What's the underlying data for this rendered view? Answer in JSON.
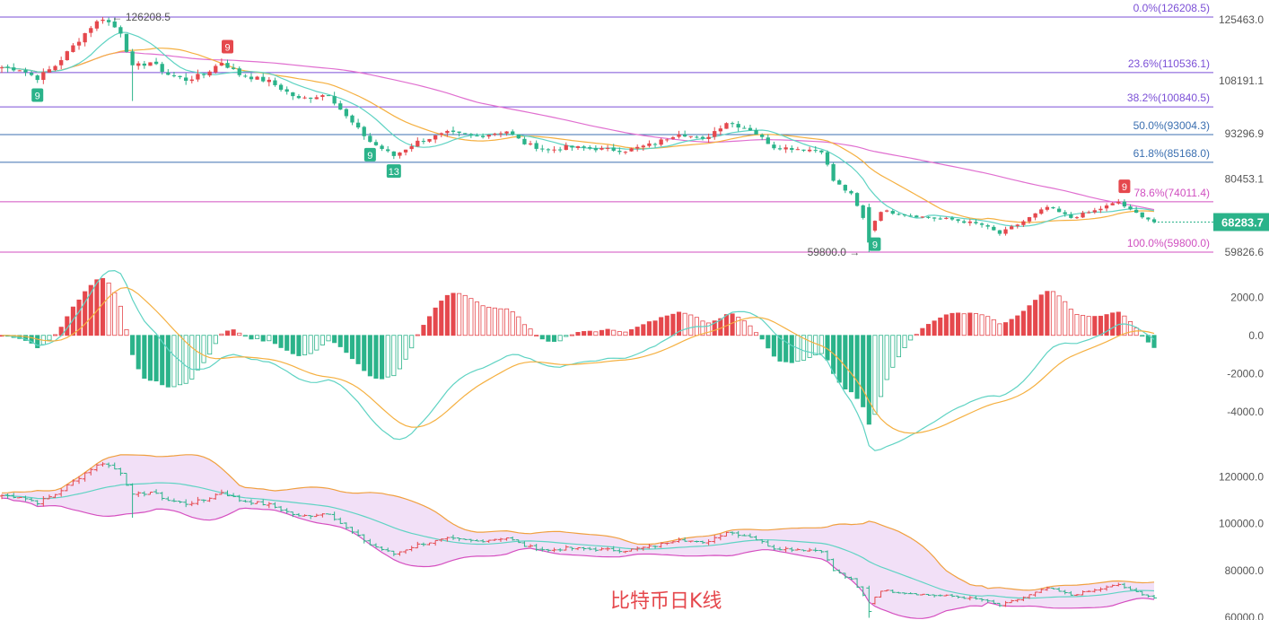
{
  "caption": "比特币日K线",
  "colors": {
    "up": "#e5484d",
    "down": "#2bb38a",
    "fib_purple": "#7b4fd6",
    "fib_pink": "#d04fc0",
    "fib_blue": "#3b6fb0",
    "ma_fast": "#5fd3c3",
    "ma_slow": "#f5b041",
    "ma_long": "#e06fd0",
    "boll_fill": "#f2e0f7",
    "boll_upper": "#f0a040",
    "boll_lower": "#d54fc0",
    "boll_mid": "#5fd3c3",
    "last_price_bg": "#2bb38a"
  },
  "price_panel": {
    "last_price": "68283.7",
    "high_label": "126208.5",
    "low_label": "59800.0",
    "axis_ticks": [
      {
        "value": 125463.0,
        "label": "125463.0"
      },
      {
        "value": 108191.1,
        "label": "108191.1"
      },
      {
        "value": 93296.9,
        "label": "93296.9"
      },
      {
        "value": 80453.1,
        "label": "80453.1"
      },
      {
        "value": 59826.6,
        "label": "59826.6"
      }
    ],
    "fib_levels": [
      {
        "value": 126208.5,
        "label": "0.0%(126208.5)",
        "color": "#7b4fd6"
      },
      {
        "value": 110536.1,
        "label": "23.6%(110536.1)",
        "color": "#7b4fd6"
      },
      {
        "value": 100840.5,
        "label": "38.2%(100840.5)",
        "color": "#7b4fd6"
      },
      {
        "value": 93004.3,
        "label": "50.0%(93004.3)",
        "color": "#3b6fb0"
      },
      {
        "value": 85168.0,
        "label": "61.8%(85168.0)",
        "color": "#3b6fb0"
      },
      {
        "value": 74011.4,
        "label": "78.6%(74011.4)",
        "color": "#d04fc0"
      },
      {
        "value": 59800.0,
        "label": "100.0%(59800.0)",
        "color": "#d04fc0"
      }
    ],
    "td_markers": [
      {
        "index": 6,
        "text": "9",
        "kind": "buy"
      },
      {
        "index": 38,
        "text": "9",
        "kind": "sell"
      },
      {
        "index": 62,
        "text": "9",
        "kind": "buy"
      },
      {
        "index": 66,
        "text": "13",
        "kind": "buy"
      },
      {
        "index": 147,
        "text": "9",
        "kind": "buy"
      },
      {
        "index": 189,
        "text": "9",
        "kind": "sell"
      }
    ]
  },
  "macd_panel": {
    "axis_ticks": [
      {
        "value": 2000,
        "label": "2000.0"
      },
      {
        "value": 0,
        "label": "0.0"
      },
      {
        "value": -2000,
        "label": "-2000.0"
      },
      {
        "value": -4000,
        "label": "-4000.0"
      }
    ]
  },
  "boll_panel": {
    "axis_ticks": [
      {
        "value": 120000,
        "label": "120000.0"
      },
      {
        "value": 100000,
        "label": "100000.0"
      },
      {
        "value": 80000,
        "label": "80000.0"
      },
      {
        "value": 60000,
        "label": "60000.0"
      }
    ]
  },
  "chart_data": {
    "type": "candlestick",
    "title": "比特币日K线",
    "price_range": [
      57000,
      128500
    ],
    "macd_range": [
      -5000,
      3000
    ],
    "boll_range": [
      60000,
      132000
    ],
    "closes_keypoints": [
      [
        0,
        112000
      ],
      [
        3,
        111500
      ],
      [
        6,
        109000
      ],
      [
        9,
        112500
      ],
      [
        12,
        118000
      ],
      [
        15,
        123500
      ],
      [
        17,
        126000
      ],
      [
        20,
        122000
      ],
      [
        22,
        112000
      ],
      [
        25,
        113500
      ],
      [
        28,
        110000
      ],
      [
        31,
        108500
      ],
      [
        34,
        110000
      ],
      [
        37,
        113500
      ],
      [
        40,
        110000
      ],
      [
        45,
        108000
      ],
      [
        50,
        103000
      ],
      [
        55,
        104500
      ],
      [
        58,
        98000
      ],
      [
        62,
        91000
      ],
      [
        66,
        87000
      ],
      [
        70,
        91000
      ],
      [
        75,
        93500
      ],
      [
        80,
        92500
      ],
      [
        85,
        94000
      ],
      [
        88,
        90500
      ],
      [
        92,
        88500
      ],
      [
        95,
        89500
      ],
      [
        100,
        89000
      ],
      [
        105,
        88500
      ],
      [
        110,
        90500
      ],
      [
        114,
        93500
      ],
      [
        118,
        91500
      ],
      [
        122,
        96500
      ],
      [
        126,
        94500
      ],
      [
        130,
        89500
      ],
      [
        134,
        89000
      ],
      [
        138,
        88500
      ],
      [
        140,
        80000
      ],
      [
        143,
        76000
      ],
      [
        146,
        66000
      ],
      [
        148,
        71500
      ],
      [
        152,
        70500
      ],
      [
        156,
        69500
      ],
      [
        160,
        69000
      ],
      [
        165,
        67500
      ],
      [
        168,
        65000
      ],
      [
        172,
        68500
      ],
      [
        176,
        72500
      ],
      [
        180,
        69500
      ],
      [
        184,
        71500
      ],
      [
        188,
        74000
      ],
      [
        190,
        71500
      ],
      [
        192,
        70000
      ],
      [
        194,
        68284
      ]
    ],
    "candles_count": 195
  }
}
